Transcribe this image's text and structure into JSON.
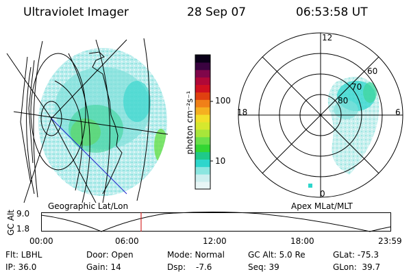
{
  "header": {
    "instrument": "Ultraviolet Imager",
    "date": "28 Sep 07",
    "time": "06:53:58 UT"
  },
  "colors": {
    "accent_line": "#cc0000",
    "grid": "#000000",
    "projection_blue": "#2020cc"
  },
  "geo_panel": {
    "label": "Geographic Lat/Lon"
  },
  "polar_panel": {
    "label": "Apex MLat/MLT",
    "mlt_labels": {
      "top": "12",
      "left": "18",
      "right": "6",
      "bottom": "0"
    },
    "lat_labels": [
      "80",
      "70",
      "60"
    ]
  },
  "colorbar": {
    "label": "photon cm⁻²s⁻¹",
    "ticks": [
      "100",
      "10"
    ],
    "scale": "log",
    "colors": [
      "#e8f6f6",
      "#cdefef",
      "#8be6e0",
      "#2ed6cc",
      "#1fc98a",
      "#33d633",
      "#6ae04a",
      "#a8e63a",
      "#d6e82e",
      "#f2e02a",
      "#f5b020",
      "#f08018",
      "#e04010",
      "#d01020",
      "#b00838",
      "#80064a",
      "#3a0340",
      "#0a0018"
    ]
  },
  "timeline": {
    "axis_label": "GC Alt",
    "y_ticks": [
      "9.0",
      "1.8"
    ],
    "x_ticks": [
      "00:00",
      "06:00",
      "12:00",
      "18:00",
      "23:59"
    ],
    "marker_time": "06:53:58"
  },
  "info": {
    "col1": [
      "Flt: LBHL",
      "IP: 36.0"
    ],
    "col2": [
      "Door: Open",
      "Gain: 14"
    ],
    "col3a": [
      "Mode: Normal",
      "Dsp:"
    ],
    "col3b": [
      "",
      "-7.6"
    ],
    "col4": [
      "GC Alt: 5.0 Re",
      "Seq: 39"
    ],
    "col5": [
      "GLat: -75.3",
      "GLon:  39.7"
    ]
  }
}
